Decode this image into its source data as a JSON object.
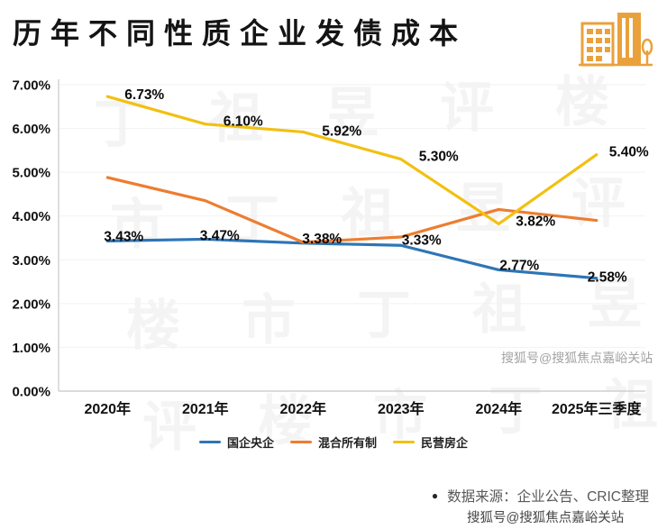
{
  "page": {
    "title": "历年不同性质企业发债成本"
  },
  "source": {
    "bullet": "●",
    "text": "数据来源：企业公告、CRIC整理"
  },
  "watermarks": {
    "tiled_text": "丁祖昱评楼市",
    "sohu_mid": "搜狐号@搜狐焦点嘉峪关站",
    "sohu_bottom": "搜狐号@搜狐焦点嘉峪关站"
  },
  "icons": {
    "buildings": "buildings-icon"
  },
  "chart_data": {
    "type": "line",
    "title": "历年不同性质企业发债成本",
    "categories": [
      "2020年",
      "2021年",
      "2022年",
      "2023年",
      "2024年",
      "2025年三季度"
    ],
    "series": [
      {
        "name": "国企央企",
        "color": "#2e75b6",
        "values": [
          3.43,
          3.47,
          3.38,
          3.33,
          2.77,
          2.58
        ],
        "point_labels": [
          "3.43%",
          "3.47%",
          "3.38%",
          "3.33%",
          "2.77%",
          "2.58%"
        ],
        "label_offsets": [
          [
            18,
            0
          ],
          [
            16,
            1
          ],
          [
            21,
            0
          ],
          [
            23,
            -1
          ],
          [
            23,
            0
          ],
          [
            12,
            4
          ]
        ]
      },
      {
        "name": "混合所有制",
        "color": "#ed7d31",
        "values": [
          4.88,
          4.35,
          3.4,
          3.52,
          4.15,
          3.9
        ],
        "point_labels": [
          null,
          null,
          null,
          null,
          null,
          null
        ],
        "label_offsets": []
      },
      {
        "name": "民营房企",
        "color": "#f2c011",
        "values": [
          6.73,
          6.1,
          5.92,
          5.3,
          3.82,
          5.4
        ],
        "point_labels": [
          "6.73%",
          "6.10%",
          "5.92%",
          "5.30%",
          "3.82%",
          "5.40%"
        ],
        "label_offsets": [
          [
            41,
            3
          ],
          [
            42,
            2
          ],
          [
            43,
            4
          ],
          [
            42,
            2
          ],
          [
            41,
            2
          ],
          [
            36,
            2
          ]
        ]
      }
    ],
    "ylim": [
      0,
      7
    ],
    "yticks": [
      "0.00%",
      "1.00%",
      "2.00%",
      "3.00%",
      "4.00%",
      "5.00%",
      "6.00%",
      "7.00%"
    ],
    "xlabel": "",
    "ylabel": "",
    "grid": false,
    "legend_position": "bottom"
  }
}
